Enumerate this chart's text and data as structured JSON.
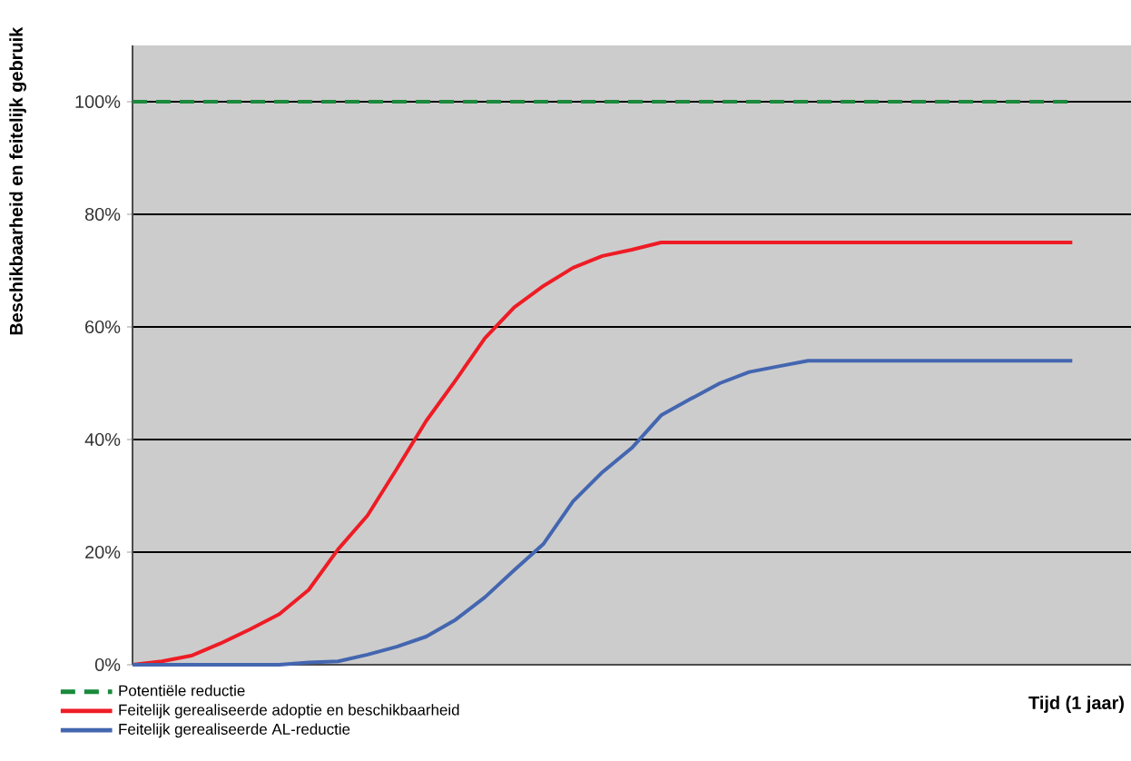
{
  "chart_data": {
    "type": "line",
    "ylabel": "Beschikbaarheid en feitelijk gebruik",
    "xlabel": "Tijd (1 jaar)",
    "categories": [
      null,
      null,
      null,
      null,
      null,
      null,
      null,
      null,
      null,
      null,
      null,
      null,
      null,
      null,
      null,
      null,
      null,
      null,
      null,
      null,
      null,
      null,
      null,
      null,
      null,
      null,
      null,
      null,
      null,
      null,
      null,
      null,
      null,
      null,
      null
    ],
    "series": [
      {
        "name": "Potentiële reductie",
        "color": "#1a8a3c",
        "line_style": "dashed",
        "values": [
          100,
          100,
          100,
          100,
          100,
          100,
          100,
          100,
          100,
          100,
          100,
          100,
          100,
          100,
          100,
          100,
          100,
          100,
          100,
          100,
          100,
          100,
          100,
          100,
          100,
          100,
          100,
          100,
          100,
          100,
          100,
          100,
          100,
          null,
          null
        ]
      },
      {
        "name": "Feitelijk gerealiseerde adoptie en beschikbaarheid",
        "color": "#ee1c25",
        "line_style": "solid",
        "values": [
          0,
          0.6,
          1.6,
          3.8,
          6.3,
          9,
          13.3,
          20.5,
          26.5,
          34.8,
          43.3,
          50.5,
          58,
          63.5,
          67.3,
          70.5,
          72.6,
          73.7,
          75,
          75,
          75,
          75,
          75,
          75,
          75,
          75,
          75,
          75,
          75,
          75,
          75,
          75,
          75,
          null,
          null
        ]
      },
      {
        "name": "Feitelijk gerealiseerde AL-reductie",
        "color": "#4466b0",
        "line_style": "solid",
        "values": [
          0,
          0,
          0,
          0,
          0,
          0,
          0.4,
          0.6,
          1.8,
          3.2,
          5,
          8,
          12,
          16.8,
          21.5,
          29,
          34.2,
          38.5,
          44.3,
          47.2,
          50,
          52,
          53,
          54,
          54,
          54,
          54,
          54,
          54,
          54,
          54,
          54,
          54,
          null,
          null
        ]
      }
    ],
    "ylim": [
      0,
      110
    ],
    "yticks": [
      {
        "value": 0,
        "label": "0%"
      },
      {
        "value": 20,
        "label": "20%"
      },
      {
        "value": 40,
        "label": "40%"
      },
      {
        "value": 60,
        "label": "60%"
      },
      {
        "value": 80,
        "label": "80%"
      },
      {
        "value": 100,
        "label": "100%"
      }
    ],
    "grid": "y",
    "legend": "bottom left",
    "marker": "none"
  }
}
